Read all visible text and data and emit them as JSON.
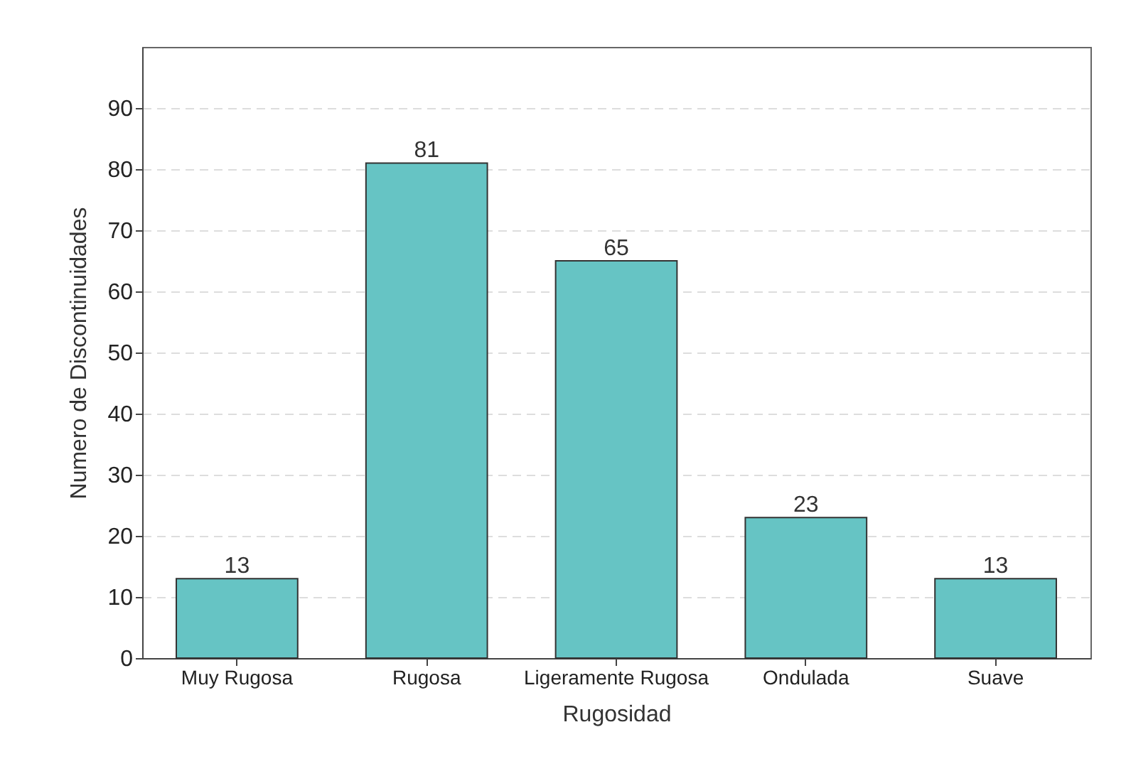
{
  "chart_data": {
    "type": "bar",
    "xlabel": "Rugosidad",
    "ylabel": "Numero de Discontinuidades",
    "categories": [
      "Muy Rugosa",
      "Rugosa",
      "Ligeramente Rugosa",
      "Ondulada",
      "Suave"
    ],
    "values": [
      13,
      81,
      65,
      23,
      13
    ],
    "color": "#66c4c4",
    "ylim": [
      0,
      100
    ],
    "yticks": [
      0,
      10,
      20,
      30,
      40,
      50,
      60,
      70,
      80,
      90
    ],
    "grid": "y",
    "data_labels": true
  }
}
